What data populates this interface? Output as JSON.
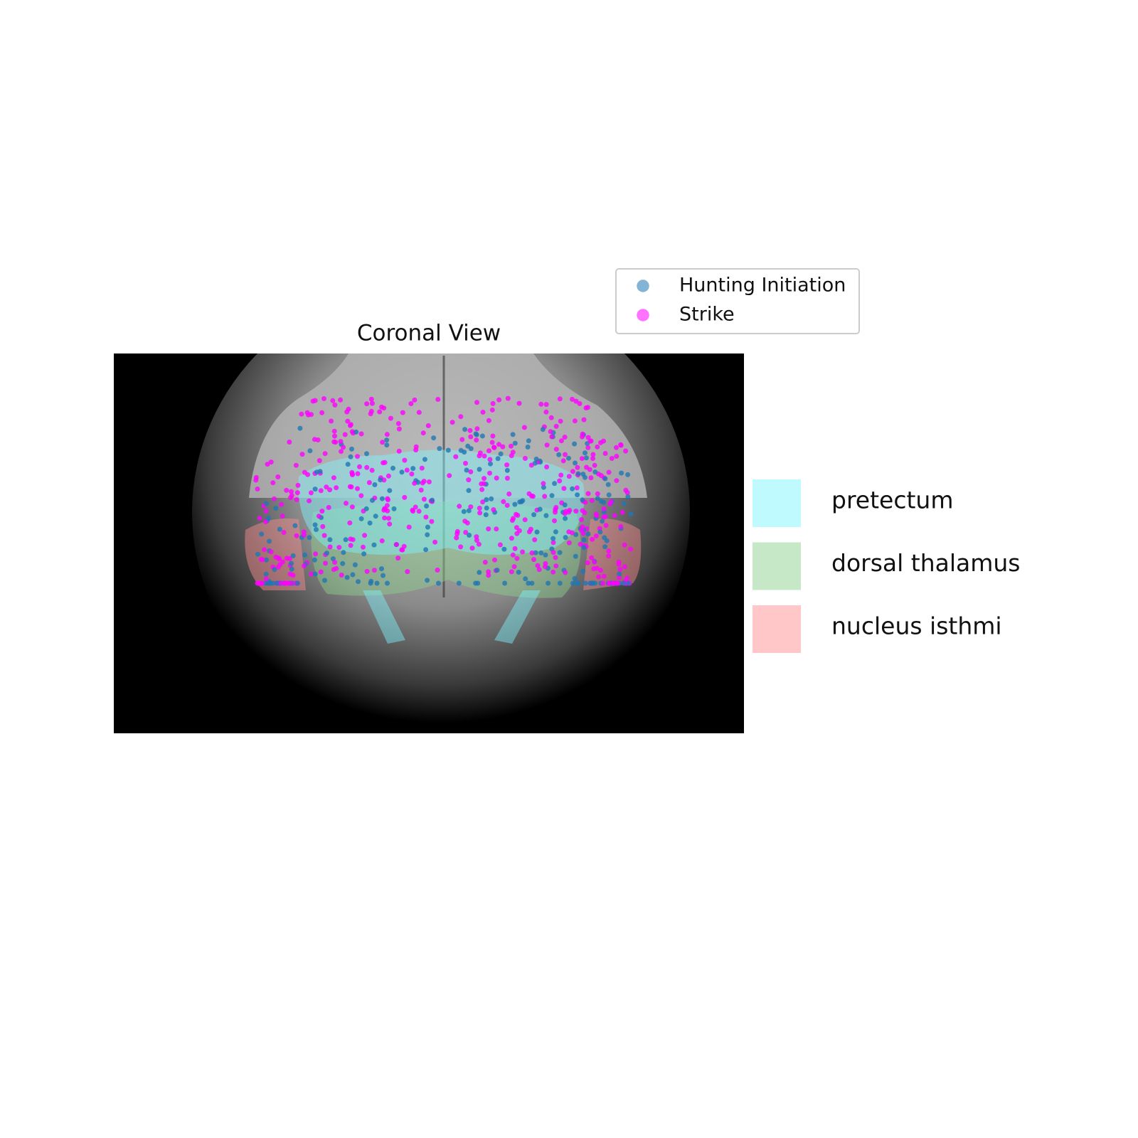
{
  "figure": {
    "title": "Coronal View",
    "legend": [
      {
        "label": "Hunting Initiation",
        "color": "#1f77b4"
      },
      {
        "label": "Strike",
        "color": "#ff00ff"
      }
    ],
    "regions": [
      {
        "label": "pretectum",
        "color": "#7ff5ff"
      },
      {
        "label": "dorsal thalamus",
        "color": "#8fd18f"
      },
      {
        "label": "nucleus isthmi",
        "color": "#ff9090"
      }
    ]
  }
}
